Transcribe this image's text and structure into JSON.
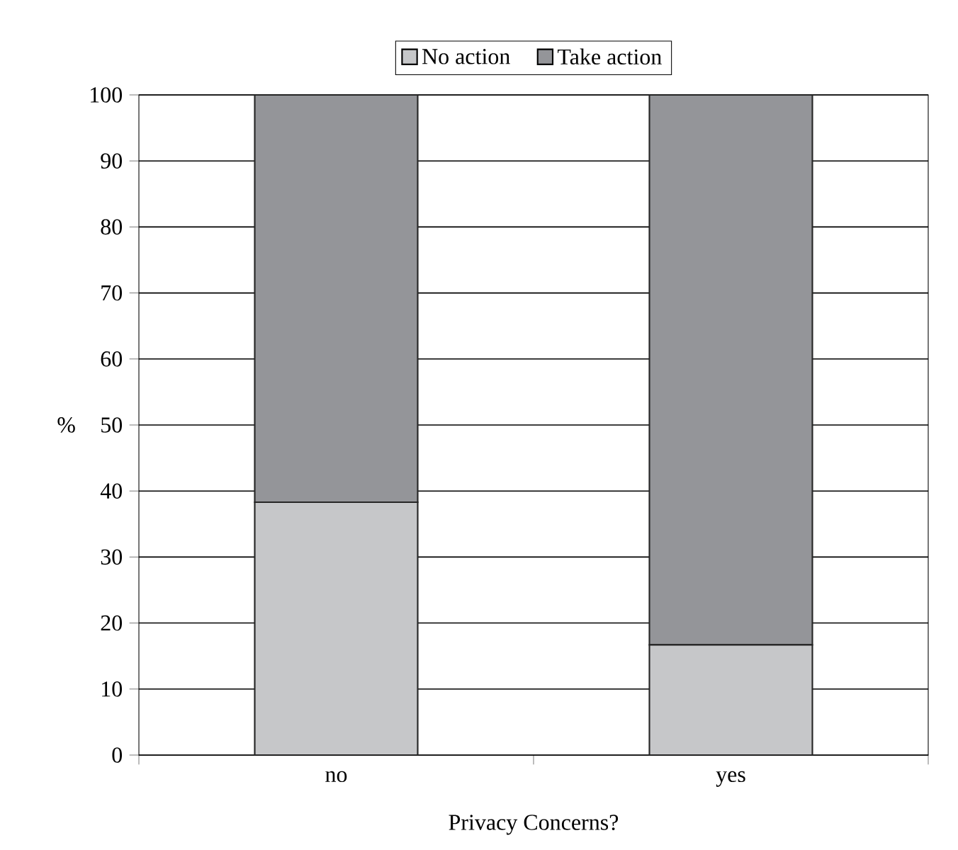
{
  "chart_data": {
    "type": "bar",
    "stacked": true,
    "categories": [
      "no",
      "yes"
    ],
    "series": [
      {
        "name": "No action",
        "color": "#c6c7c9",
        "values": [
          38.3,
          16.7
        ]
      },
      {
        "name": "Take action",
        "color": "#949599",
        "values": [
          61.7,
          83.3
        ]
      }
    ],
    "ylabel": "%",
    "xlabel": "Privacy Concerns?",
    "ylim": [
      0,
      100
    ],
    "yticks": [
      0,
      10,
      20,
      30,
      40,
      50,
      60,
      70,
      80,
      90,
      100
    ],
    "grid": "y",
    "legend": "top"
  }
}
